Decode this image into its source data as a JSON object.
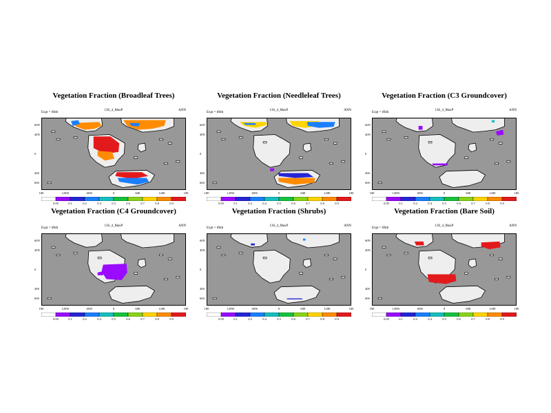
{
  "panels": [
    {
      "title": "Vegetation Fraction (Broadleaf Trees)",
      "expt": "Expt = tfbtb",
      "run": "136_4_MaxP",
      "season": "ANN",
      "lat_ticks": [
        "60N",
        "40N",
        "0",
        "40S",
        "60S"
      ],
      "lon_ticks": [
        "180",
        "120W",
        "60W",
        "0",
        "60E",
        "120E",
        "180"
      ],
      "cb_ticks": [
        "0.05",
        "0.1",
        "0.2",
        "0.4",
        "0.5",
        "0.6",
        "0.7",
        "0.8",
        "0.9"
      ]
    },
    {
      "title": "Vegetation Fraction (Needleleaf Trees)",
      "expt": "Expt = tfbtb",
      "run": "136_4_MaxP",
      "season": "ANN",
      "lat_ticks": [
        "60N",
        "40N",
        "0",
        "40S",
        "60S"
      ],
      "lon_ticks": [
        "180",
        "120W",
        "60W",
        "0",
        "60E",
        "120E",
        "180"
      ],
      "cb_ticks": [
        "0.05",
        "0.1",
        "0.2",
        "0.4",
        "0.5",
        "0.6",
        "0.7",
        "0.8",
        "0.9"
      ]
    },
    {
      "title": "Vegetation Fraction (C3 Groundcover)",
      "expt": "Expt = tfbtb",
      "run": "136_4_MaxP",
      "season": "ANN",
      "lat_ticks": [
        "60N",
        "40N",
        "0",
        "40S",
        "60S"
      ],
      "lon_ticks": [
        "180",
        "120W",
        "60W",
        "0",
        "60E",
        "120E",
        "180"
      ],
      "cb_ticks": [
        "0.05",
        "0.1",
        "0.2",
        "0.4",
        "0.5",
        "0.6",
        "0.7",
        "0.8",
        "0.9"
      ]
    },
    {
      "title": "Vegetation Fraction (C4 Groundcover)",
      "expt": "Expt = tfbtb",
      "run": "136_4_MaxP",
      "season": "ANN",
      "lat_ticks": [
        "60N",
        "40N",
        "0",
        "40S",
        "60S"
      ],
      "lon_ticks": [
        "180",
        "120W",
        "60W",
        "0",
        "60E",
        "120E",
        "180"
      ],
      "cb_ticks": [
        "0.05",
        "0.1",
        "0.2",
        "0.4",
        "0.5",
        "0.6",
        "0.7",
        "0.8",
        "0.9"
      ]
    },
    {
      "title": "Vegetation Fraction (Shrubs)",
      "expt": "Expt = tfbtb",
      "run": "136_4_MaxP",
      "season": "ANN",
      "lat_ticks": [
        "60N",
        "40N",
        "0",
        "40S",
        "60S"
      ],
      "lon_ticks": [
        "180",
        "120W",
        "60W",
        "0",
        "60E",
        "120E",
        "180"
      ],
      "cb_ticks": [
        "0.05",
        "0.1",
        "0.2",
        "0.4",
        "0.5",
        "0.6",
        "0.7",
        "0.8",
        "0.9"
      ]
    },
    {
      "title": "Vegetation Fraction (Bare Soil)",
      "expt": "Expt = tfbtb",
      "run": "136_4_MaxP",
      "season": "ANN",
      "lat_ticks": [
        "60N",
        "40N",
        "0",
        "40S",
        "60S"
      ],
      "lon_ticks": [
        "180",
        "120W",
        "60W",
        "0",
        "60E",
        "120E",
        "180"
      ],
      "cb_ticks": [
        "0.05",
        "0.1",
        "0.2",
        "0.4",
        "0.5",
        "0.6",
        "0.7",
        "0.8",
        "0.9"
      ]
    }
  ],
  "colors": {
    "ocean": "#989898",
    "land": "#eeeeee",
    "scale": [
      "#ffffff",
      "#9a0bff",
      "#2525d8",
      "#1a7fff",
      "#17bfbf",
      "#17c23e",
      "#8ad417",
      "#ffd400",
      "#ff8c00",
      "#e31a1c"
    ]
  },
  "chart_data": [
    {
      "type": "heatmap",
      "title": "Vegetation Fraction (Broadleaf Trees)",
      "x": [
        "180",
        "120W",
        "60W",
        "0",
        "60E",
        "120E",
        "180"
      ],
      "y": [
        "60N",
        "40N",
        "0",
        "40S",
        "60S"
      ],
      "levels": [
        0.05,
        0.1,
        0.2,
        0.4,
        0.5,
        0.6,
        0.7,
        0.8,
        0.9
      ],
      "regions": [
        {
          "lon": -35,
          "lat": 62,
          "value": 0.9
        },
        {
          "lon": 50,
          "lat": 60,
          "value": 0.9
        },
        {
          "lon": 5,
          "lat": 5,
          "value": 0.85
        },
        {
          "lon": 30,
          "lat": -30,
          "value": 0.85
        },
        {
          "lon": -65,
          "lat": 55,
          "value": 0.45
        }
      ]
    },
    {
      "type": "heatmap",
      "title": "Vegetation Fraction (Needleleaf Trees)",
      "x": [
        "180",
        "120W",
        "60W",
        "0",
        "60E",
        "120E",
        "180"
      ],
      "y": [
        "60N",
        "40N",
        "0",
        "40S",
        "60S"
      ],
      "levels": [
        0.05,
        0.1,
        0.2,
        0.4,
        0.5,
        0.6,
        0.7,
        0.8,
        0.9
      ],
      "regions": [
        {
          "lon": -10,
          "lat": 60,
          "value": 0.75
        },
        {
          "lon": 70,
          "lat": 62,
          "value": 0.5
        },
        {
          "lon": 40,
          "lat": -55,
          "value": 0.75
        },
        {
          "lon": 20,
          "lat": -30,
          "value": 0.15
        }
      ]
    },
    {
      "type": "heatmap",
      "title": "Vegetation Fraction (C3 Groundcover)",
      "x": [
        "180",
        "120W",
        "60W",
        "0",
        "60E",
        "120E",
        "180"
      ],
      "y": [
        "60N",
        "40N",
        "0",
        "40S",
        "60S"
      ],
      "levels": [
        0.05,
        0.1,
        0.2,
        0.4,
        0.5,
        0.6,
        0.7,
        0.8,
        0.9
      ],
      "regions": [
        {
          "lon": -60,
          "lat": 55,
          "value": 0.15
        },
        {
          "lon": 140,
          "lat": 40,
          "value": 0.15
        },
        {
          "lon": -10,
          "lat": -40,
          "value": 0.1
        }
      ]
    },
    {
      "type": "heatmap",
      "title": "Vegetation Fraction (C4 Groundcover)",
      "x": [
        "180",
        "120W",
        "60W",
        "0",
        "60E",
        "120E",
        "180"
      ],
      "y": [
        "60N",
        "40N",
        "0",
        "40S",
        "60S"
      ],
      "levels": [
        0.05,
        0.1,
        0.2,
        0.4,
        0.5,
        0.6,
        0.7,
        0.8,
        0.9
      ],
      "regions": [
        {
          "lon": 0,
          "lat": -10,
          "value": 0.1
        }
      ]
    },
    {
      "type": "heatmap",
      "title": "Vegetation Fraction (Shrubs)",
      "x": [
        "180",
        "120W",
        "60W",
        "0",
        "60E",
        "120E",
        "180"
      ],
      "y": [
        "60N",
        "40N",
        "0",
        "40S",
        "60S"
      ],
      "levels": [
        0.05,
        0.1,
        0.2,
        0.4,
        0.5,
        0.6,
        0.7,
        0.8,
        0.9
      ],
      "regions": [
        {
          "lon": 30,
          "lat": -60,
          "value": 0.1
        },
        {
          "lon": -65,
          "lat": 55,
          "value": 0.15
        }
      ]
    },
    {
      "type": "heatmap",
      "title": "Vegetation Fraction (Bare Soil)",
      "x": [
        "180",
        "120W",
        "60W",
        "0",
        "60E",
        "120E",
        "180"
      ],
      "y": [
        "60N",
        "40N",
        "0",
        "40S",
        "60S"
      ],
      "levels": [
        0.05,
        0.1,
        0.2,
        0.4,
        0.5,
        0.6,
        0.7,
        0.8,
        0.9
      ],
      "regions": [
        {
          "lon": -20,
          "lat": -20,
          "value": 0.9
        },
        {
          "lon": 110,
          "lat": 45,
          "value": 0.9
        },
        {
          "lon": -60,
          "lat": 55,
          "value": 0.9
        }
      ]
    }
  ]
}
